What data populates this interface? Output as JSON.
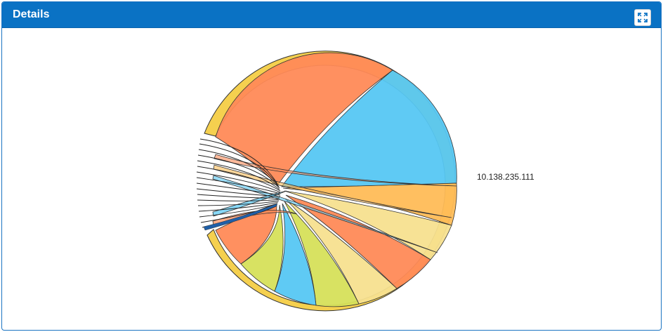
{
  "panel": {
    "title": "Details",
    "expand_icon": "expand-icon"
  },
  "chart_data": {
    "type": "chord",
    "label": "10.138.235.111",
    "group_color": "#f5d04f",
    "ribbons": [
      {
        "color": "#ff8a57"
      },
      {
        "color": "#56c7f3"
      },
      {
        "color": "#ffbc57"
      },
      {
        "color": "#f7e08f"
      },
      {
        "color": "#ff8a57"
      },
      {
        "color": "#f7e08f"
      },
      {
        "color": "#d6e05a"
      },
      {
        "color": "#56c7f3"
      },
      {
        "color": "#d6e05a"
      },
      {
        "color": "#ff8a57"
      }
    ]
  }
}
